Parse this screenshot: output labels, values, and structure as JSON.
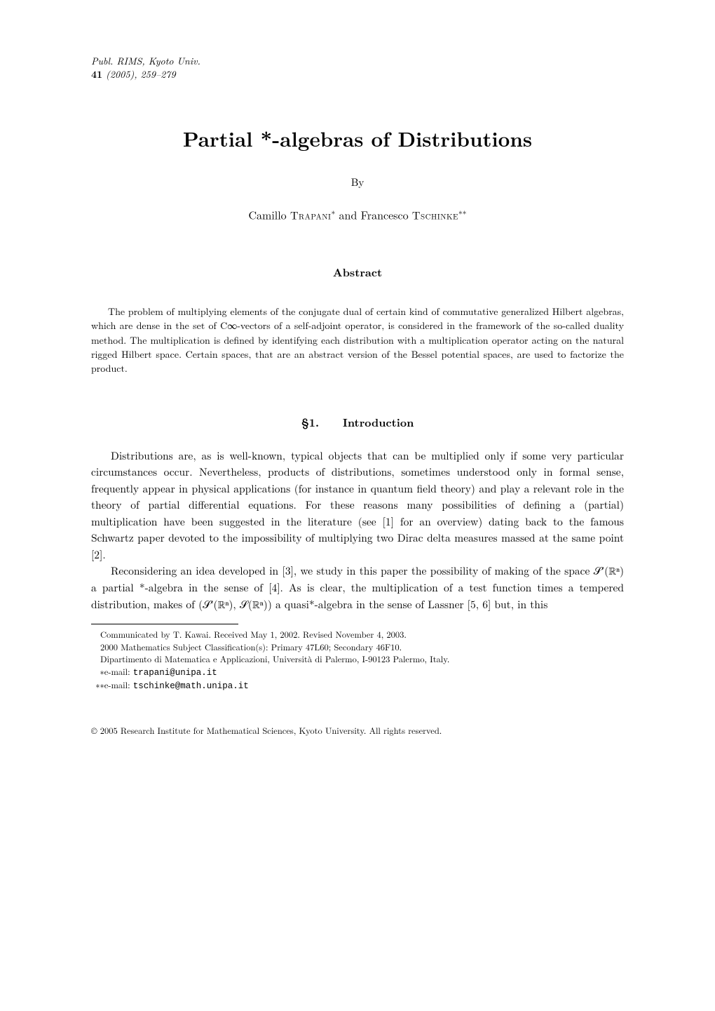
{
  "journal": {
    "name": "Publ. RIMS, Kyoto Univ.",
    "volume": "41",
    "year": "(2005)",
    "pages": "259–279"
  },
  "title": "Partial *-algebras of Distributions",
  "by_label": "By",
  "authors": {
    "author1_first": "Camillo ",
    "author1_last": "Trapani",
    "author1_sup": "∗",
    "and": " and ",
    "author2_first": "Francesco ",
    "author2_last": "Tschinke",
    "author2_sup": "∗∗"
  },
  "abstract": {
    "heading": "Abstract",
    "text": "The problem of multiplying elements of the conjugate dual of certain kind of commutative generalized Hilbert algebras, which are dense in the set of C∞-vectors of a self-adjoint operator, is considered in the framework of the so-called duality method. The multiplication is defined by identifying each distribution with a multiplication operator acting on the natural rigged Hilbert space. Certain spaces, that are an abstract version of the Bessel potential spaces, are used to factorize the product."
  },
  "section": {
    "number": "§1.",
    "title": "Introduction"
  },
  "body": {
    "para1": "Distributions are, as is well-known, typical objects that can be multiplied only if some very particular circumstances occur. Nevertheless, products of distributions, sometimes understood only in formal sense, frequently appear in physical applications (for instance in quantum field theory) and play a relevant role in the theory of partial differential equations. For these reasons many possibilities of defining a (partial) multiplication have been suggested in the literature (see [1] for an overview) dating back to the famous Schwartz paper devoted to the impossibility of multiplying two Dirac delta measures massed at the same point [2].",
    "para2": "Reconsidering an idea developed in [3], we study in this paper the possibility of making of the space 𝒮′(ℝⁿ) a partial *-algebra in the sense of [4]. As is clear, the multiplication of a test function times a tempered distribution, makes of (𝒮′(ℝⁿ), 𝒮(ℝⁿ)) a quasi*-algebra in the sense of Lassner [5, 6] but, in this"
  },
  "footnotes": {
    "communicated": "Communicated by T. Kawai. Received May 1, 2002. Revised November 4, 2003.",
    "msc": "2000 Mathematics Subject Classification(s): Primary 47L60; Secondary 46F10.",
    "affiliation": "Dipartimento di Matematica e Applicazioni, Università di Palermo, I-90123 Palermo, Italy.",
    "email1_label": "∗e-mail: ",
    "email1": "trapani@unipa.it",
    "email2_label": "∗∗e-mail: ",
    "email2": "tschinke@math.unipa.it"
  },
  "copyright": "© 2005 Research Institute for Mathematical Sciences, Kyoto University. All rights reserved.",
  "colors": {
    "text": "#000000",
    "background": "#ffffff"
  }
}
